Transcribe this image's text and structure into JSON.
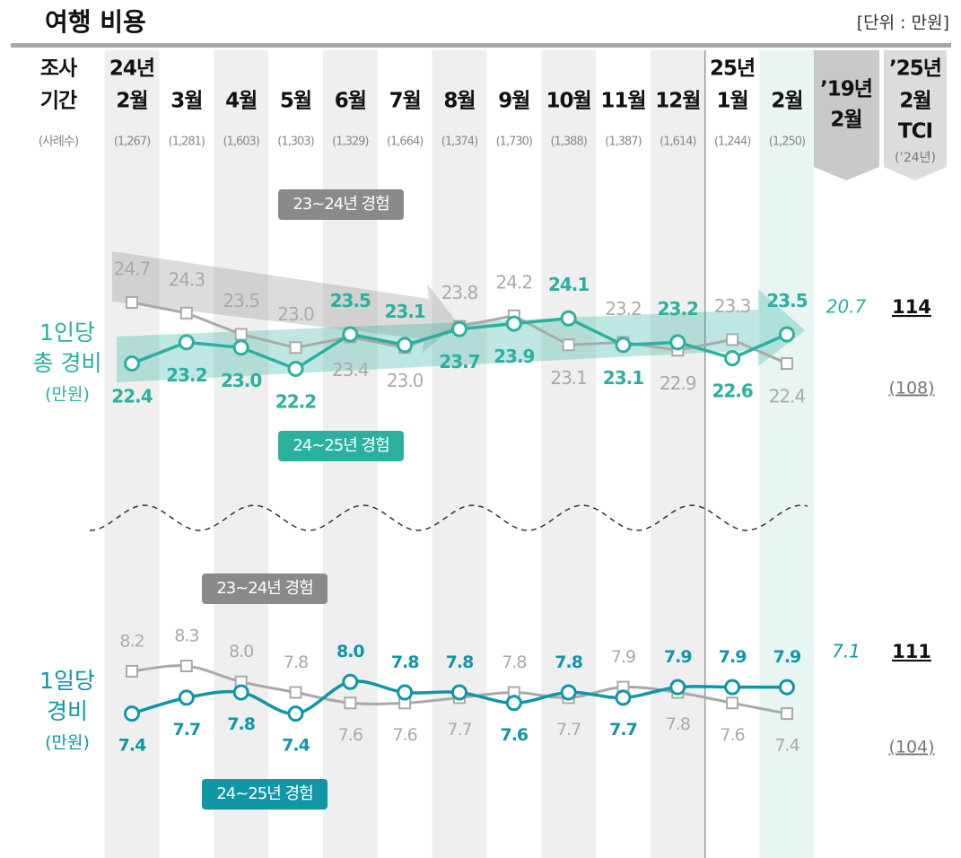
{
  "header": {
    "title": "여행 비용",
    "unit": "[단위 : 만원]",
    "period_label": [
      "조사",
      "기간"
    ],
    "sample_label": "(사례수)",
    "col_2019": [
      "’19년",
      "2월"
    ],
    "col_tci": [
      "’25년",
      "2월",
      "TCI"
    ],
    "col_tci_note": "(’24년)"
  },
  "columns": {
    "years": [
      "24년",
      null,
      null,
      null,
      null,
      null,
      null,
      null,
      null,
      null,
      null,
      "25년",
      null
    ],
    "months": [
      "2월",
      "3월",
      "4월",
      "5월",
      "6월",
      "7월",
      "8월",
      "9월",
      "10월",
      "11월",
      "12월",
      "1월",
      "2월"
    ],
    "sample_sizes": [
      "(1,267)",
      "(1,281)",
      "(1,603)",
      "(1,303)",
      "(1,329)",
      "(1,664)",
      "(1,374)",
      "(1,730)",
      "(1,388)",
      "(1,387)",
      "(1,614)",
      "(1,244)",
      "(1,250)"
    ]
  },
  "chart_data": [
    {
      "type": "line",
      "title": [
        "1인당",
        "총 경비"
      ],
      "unit": "(만원)",
      "ylim": [
        21.5,
        25.5
      ],
      "smooth": false,
      "series": [
        {
          "name": "23~24년 경험",
          "color": "#a9a9a9",
          "marker": "square",
          "values": [
            24.7,
            24.3,
            23.5,
            23.0,
            23.4,
            23.0,
            23.8,
            24.2,
            23.1,
            23.2,
            22.9,
            23.3,
            22.4
          ],
          "value_labels": [
            "24.7",
            "24.3",
            "23.5",
            "23.0",
            "23.4",
            "23.0",
            "23.8",
            "24.2",
            "23.1",
            "23.2",
            "22.9",
            "23.3",
            "22.4"
          ]
        },
        {
          "name": "24~25년 경험",
          "color": "#2bb0a0",
          "marker": "circle",
          "values": [
            22.4,
            23.2,
            23.0,
            22.2,
            23.5,
            23.1,
            23.7,
            23.9,
            24.1,
            23.1,
            23.2,
            22.6,
            23.5
          ],
          "value_labels": [
            "22.4",
            "23.2",
            "23.0",
            "22.2",
            "23.5",
            "23.1",
            "23.7",
            "23.9",
            "24.1",
            "23.1",
            "23.2",
            "22.6",
            "23.5"
          ]
        }
      ],
      "value_2019": 20.7,
      "tci": 114,
      "tci_prev": {
        "value": 108,
        "label": "(108)"
      }
    },
    {
      "type": "line",
      "title": [
        "1일당",
        "경비"
      ],
      "unit": "(만원)",
      "ylim": [
        7.0,
        8.6
      ],
      "smooth": true,
      "series": [
        {
          "name": "23~24년 경험",
          "color": "#a9a9a9",
          "marker": "square",
          "values": [
            8.2,
            8.3,
            8.0,
            7.8,
            7.6,
            7.6,
            7.7,
            7.8,
            7.7,
            7.9,
            7.8,
            7.6,
            7.4
          ],
          "value_labels": [
            "8.2",
            "8.3",
            "8.0",
            "7.8",
            "7.6",
            "7.6",
            "7.7",
            "7.8",
            "7.7",
            "7.9",
            "7.8",
            "7.6",
            "7.4"
          ]
        },
        {
          "name": "24~25년 경험",
          "color": "#1196a6",
          "marker": "circle",
          "values": [
            7.4,
            7.7,
            7.8,
            7.4,
            8.0,
            7.8,
            7.8,
            7.6,
            7.8,
            7.7,
            7.9,
            7.9,
            7.9
          ],
          "value_labels": [
            "7.4",
            "7.7",
            "7.8",
            "7.4",
            "8.0",
            "7.8",
            "7.8",
            "7.6",
            "7.8",
            "7.7",
            "7.9",
            "7.9",
            "7.9"
          ]
        }
      ],
      "value_2019": 7.1,
      "tci": 111,
      "tci_prev": {
        "value": 104,
        "label": "(104)"
      }
    }
  ]
}
